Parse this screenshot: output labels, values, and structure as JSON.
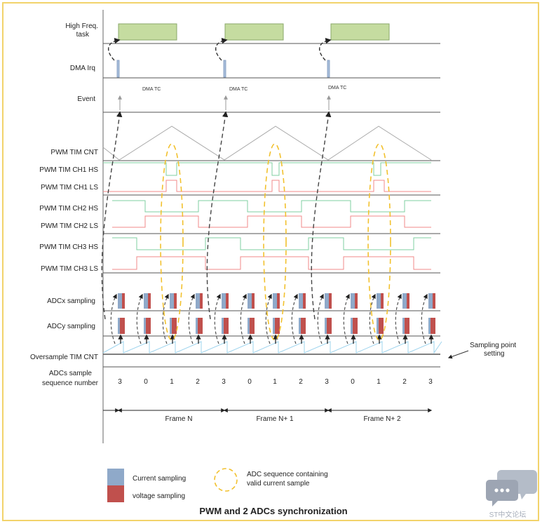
{
  "title": "PWM and 2 ADCs synchronization",
  "rows": {
    "high_freq_task": [
      "High Freq.",
      "task"
    ],
    "dma_irq": "DMA Irq",
    "event": "Event",
    "pwm_cnt": "PWM TIM CNT",
    "ch1_hs": "PWM TIM CH1 HS",
    "ch1_ls": "PWM TIM CH1 LS",
    "ch2_hs": "PWM TIM CH2 HS",
    "ch2_ls": "PWM TIM CH2 LS",
    "ch3_hs": "PWM TIM CH3 HS",
    "ch3_ls": "PWM TIM CH3 LS",
    "adcx": "ADCx sampling",
    "adcy": "ADCy sampling",
    "oversample": "Oversample TIM CNT",
    "seq_label": [
      "ADCs sample",
      "sequence number"
    ]
  },
  "dma_tc_label": "DMA TC",
  "sequence_numbers": [
    "3",
    "0",
    "1",
    "2",
    "3",
    "0",
    "1",
    "2",
    "3",
    "0",
    "1",
    "2",
    "3"
  ],
  "frames": [
    "Frame N",
    "Frame N+ 1",
    "Frame N+ 2"
  ],
  "sampling_point_note": [
    "Sampling point",
    "setting"
  ],
  "legend": {
    "current": "Current sampling",
    "voltage": "voltage sampling",
    "ellipse": [
      "ADC sequence containing",
      "valid current sample"
    ]
  },
  "watermark": "ST中文论坛",
  "colors": {
    "frame_border": "#f2d36b",
    "task_fill": "#c5dca0",
    "task_stroke": "#8aa86a",
    "irq_fill": "#a9bfdc",
    "current": "#8fa9c9",
    "voltage": "#c0504d",
    "hs_line": "#7fcfa0",
    "ls_line": "#f08a8a",
    "ellipse": "#f2c12e",
    "oversample": "#9fd4ee",
    "grid": "#555555"
  }
}
